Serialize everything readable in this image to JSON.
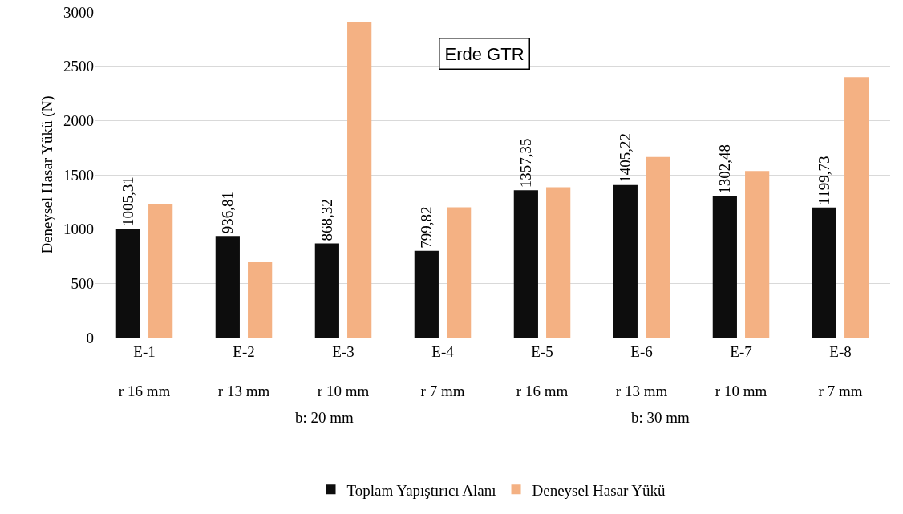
{
  "chart_data": {
    "type": "bar",
    "title": "Erde GTR",
    "ylabel": "Deneysel Hasar Yükü (N)",
    "categories": [
      "E-1\nr 16 mm",
      "E-2\nr 13 mm",
      "E-3\nr 10 mm",
      "E-4\nr 7 mm",
      "E-5\nr 16 mm",
      "E-6\nr 13 mm",
      "E-7\nr 10 mm",
      "E-8\nr 7 mm"
    ],
    "series": [
      {
        "name": "Toplam Yapıştırıcı Alanı",
        "color": "#0d0d0d",
        "values": [
          1005.31,
          936.81,
          868.32,
          799.82,
          1357.35,
          1405.22,
          1302.48,
          1199.73
        ],
        "value_labels": [
          "1005,31",
          "936,81",
          "868,32",
          "799,82",
          "1357,35",
          "1405,22",
          "1302,48",
          "1199,73"
        ]
      },
      {
        "name": "Deneysel Hasar Yükü",
        "color": "#f4b183",
        "values": [
          1230,
          695,
          2910,
          1200,
          1385,
          1665,
          1535,
          2400
        ]
      }
    ],
    "annotations": [
      "b: 20 mm",
      "b: 30 mm"
    ],
    "ylim": [
      0,
      3000
    ],
    "yticks": [
      0,
      500,
      1000,
      1500,
      2000,
      2500,
      3000
    ],
    "grid": "y",
    "legend": "bottom"
  }
}
